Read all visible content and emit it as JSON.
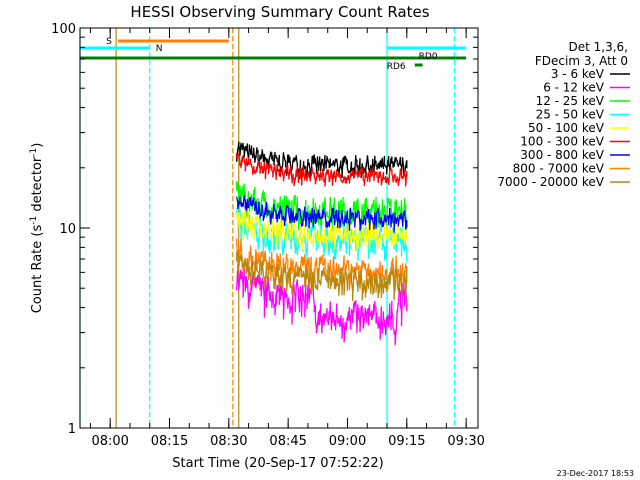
{
  "chart_data": {
    "type": "line",
    "title": "HESSI Observing Summary Count Rates",
    "xlabel": "Start Time (20-Sep-17 07:52:22)",
    "ylabel": "Count Rate (s",
    "ylabel_sup": "-1",
    "ylabel_mid": " detector",
    "ylabel_end": ")",
    "yscale": "log",
    "xlim": [
      "07:52:22",
      "09:33:00"
    ],
    "ylim": [
      1,
      100
    ],
    "x_ticks": [
      "08:00",
      "08:15",
      "08:30",
      "08:45",
      "09:00",
      "09:15",
      "09:30"
    ],
    "y_ticks": [
      "1",
      "10",
      "100"
    ],
    "legend_header": [
      "Det 1,3,6,",
      "FDecim 3, Att 0"
    ],
    "series": [
      {
        "name": "3 - 6 keV",
        "color": "#000000",
        "base": 21,
        "noise": 0.1
      },
      {
        "name": "6 - 12 keV",
        "color": "#ff00ff",
        "base": 4.6,
        "noise": 0.18
      },
      {
        "name": "12 - 25 keV",
        "color": "#00ff00",
        "base": 12.5,
        "noise": 0.15
      },
      {
        "name": "25 - 50 keV",
        "color": "#00ffff",
        "base": 9.0,
        "noise": 0.15
      },
      {
        "name": "50 - 100 keV",
        "color": "#ffff00",
        "base": 9.5,
        "noise": 0.12
      },
      {
        "name": "100 - 300 keV",
        "color": "#ff0000",
        "base": 18.5,
        "noise": 0.08
      },
      {
        "name": "300 - 800 keV",
        "color": "#0000ff",
        "base": 11.5,
        "noise": 0.1
      },
      {
        "name": "800 - 7000 keV",
        "color": "#ff8000",
        "base": 6.4,
        "noise": 0.14
      },
      {
        "name": "7000 - 20000 keV",
        "color": "#b8860b",
        "base": 5.6,
        "noise": 0.14
      }
    ],
    "data_span": {
      "start": "08:32",
      "end": "09:15"
    },
    "flags": [
      {
        "label": "S",
        "color": "#ff8000",
        "start": "08:02",
        "end": "08:30"
      },
      {
        "label": "N",
        "color": "#00ffff",
        "start": "07:52:22",
        "end": "08:10"
      },
      {
        "label": "",
        "color": "#00ffff",
        "start": "09:10",
        "end": "09:30"
      },
      {
        "label": "RD0",
        "color": "#008000",
        "start": "07:52:22",
        "end": "09:30"
      },
      {
        "label": "RD6",
        "color": "#008000",
        "start": "09:17",
        "end": "09:19"
      }
    ],
    "vlines": [
      {
        "time": "07:52:22",
        "color": "#00ffff",
        "style": "solid"
      },
      {
        "time": "08:01:30",
        "color": "#b8860b",
        "style": "solid"
      },
      {
        "time": "08:10",
        "color": "#00ffff",
        "style": "dashed"
      },
      {
        "time": "08:31",
        "color": "#ff8000",
        "style": "dashed"
      },
      {
        "time": "08:32:30",
        "color": "#b8860b",
        "style": "solid"
      },
      {
        "time": "09:10",
        "color": "#00ffff",
        "style": "solid"
      },
      {
        "time": "09:27",
        "color": "#00ffff",
        "style": "dashed"
      }
    ]
  },
  "footer": {
    "timestamp": "23-Dec-2017 18:53"
  }
}
